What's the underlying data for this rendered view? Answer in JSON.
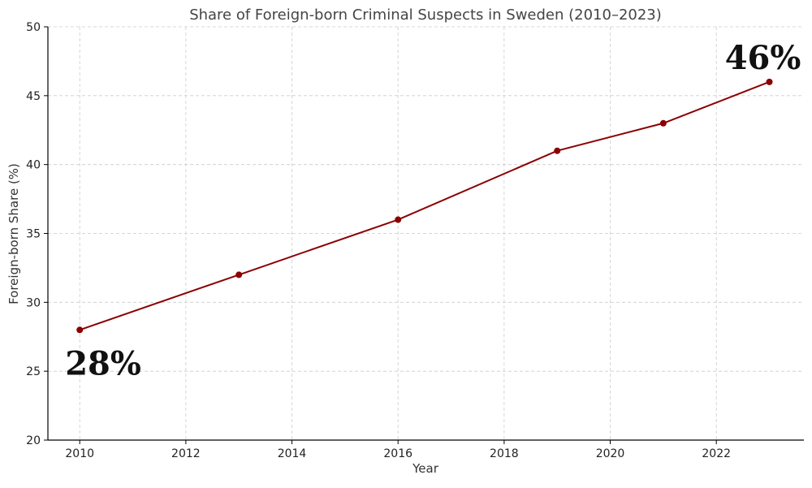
{
  "chart_data": {
    "type": "line",
    "title": "Share of Foreign-born Criminal Suspects in Sweden (2010–2023)",
    "xlabel": "Year",
    "ylabel": "Foreign-born Share (%)",
    "xlim": [
      2009.4,
      2023.65
    ],
    "ylim": [
      20,
      50
    ],
    "xticks": [
      2010,
      2012,
      2014,
      2016,
      2018,
      2020,
      2022
    ],
    "yticks": [
      20,
      25,
      30,
      35,
      40,
      45,
      50
    ],
    "grid": true,
    "series": [
      {
        "x": [
          2010,
          2013,
          2016,
          2019,
          2021,
          2023
        ],
        "values": [
          28,
          32,
          36,
          41,
          43,
          46
        ]
      }
    ],
    "annotations": [
      {
        "text": "28%",
        "x": 2010,
        "y": 28
      },
      {
        "text": "46%",
        "x": 2023,
        "y": 46
      }
    ],
    "colors": {
      "line": "#8b0000",
      "grid": "#cccccc",
      "axis": "#000000"
    }
  }
}
